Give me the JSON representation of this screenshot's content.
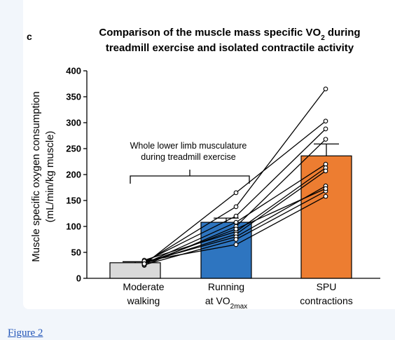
{
  "panel_label": "c",
  "figure_link": "Figure 2",
  "chart_data": {
    "type": "bar",
    "title_line1_pre": "Comparison of the muscle mass specific VO",
    "title_line1_sub": "2",
    "title_line1_post": " during",
    "title_line2": "treadmill exercise and isolated contractile activity",
    "ylabel_line1": "Muscle specific oxygen consumption",
    "ylabel_line2": "(mL/min/kg muscle)",
    "ylim": [
      0,
      400
    ],
    "yticks": [
      0,
      50,
      100,
      150,
      200,
      250,
      300,
      350,
      400
    ],
    "categories": [
      {
        "line1": "Moderate",
        "line2": "walking",
        "line2_sub": "",
        "value": 30,
        "error": 2,
        "color": "#d9d9d9"
      },
      {
        "line1": "Running",
        "line2": "at VO",
        "line2_sub": "2max",
        "value": 108,
        "error": 8,
        "color": "#2e75c0"
      },
      {
        "line1": "SPU",
        "line2": "contractions",
        "line2_sub": "",
        "value": 236,
        "error": 23,
        "color": "#ed7d31"
      }
    ],
    "individuals": [
      [
        27,
        165,
        303
      ],
      [
        30,
        138,
        365
      ],
      [
        32,
        120,
        288
      ],
      [
        25,
        100,
        268
      ],
      [
        28,
        108,
        220
      ],
      [
        35,
        90,
        213
      ],
      [
        29,
        85,
        207
      ],
      [
        31,
        80,
        178
      ],
      [
        26,
        75,
        168
      ],
      [
        33,
        65,
        158
      ],
      [
        28,
        95,
        173
      ]
    ],
    "annotation_line1": "Whole lower limb musculature",
    "annotation_line2": "during treadmill exercise"
  }
}
